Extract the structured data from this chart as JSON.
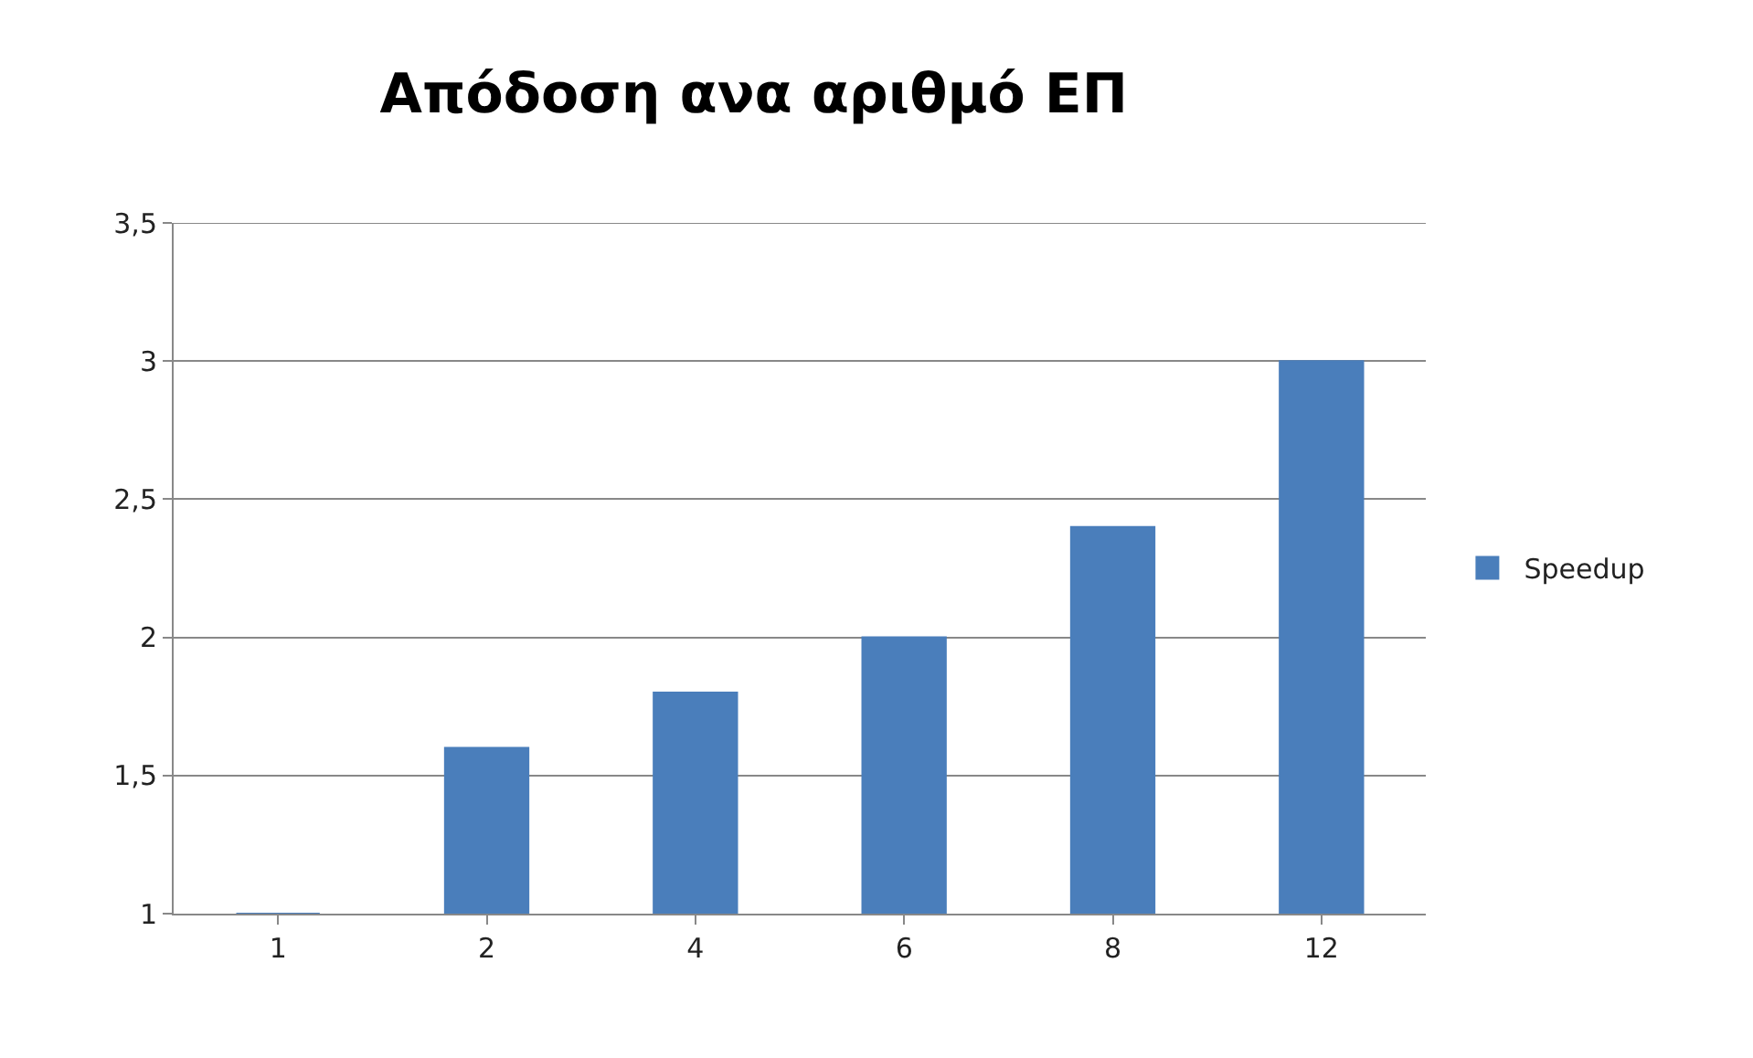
{
  "chart_data": {
    "type": "bar",
    "title": "Απόδοση ανα αριθμό ΕΠ",
    "categories": [
      "1",
      "2",
      "4",
      "6",
      "8",
      "12"
    ],
    "series": [
      {
        "name": "Speedup",
        "color": "#4a7ebb",
        "values": [
          1,
          1.6,
          1.8,
          2,
          2.4,
          3
        ]
      }
    ],
    "ylim": [
      1,
      3.5
    ],
    "yticks": [
      1,
      {
        "value": 1.5,
        "label": "1,5"
      },
      2,
      {
        "value": 2.5,
        "label": "2,5"
      },
      3,
      {
        "value": 3.5,
        "label": "3,5"
      }
    ],
    "grid": "y",
    "legend": "right"
  }
}
